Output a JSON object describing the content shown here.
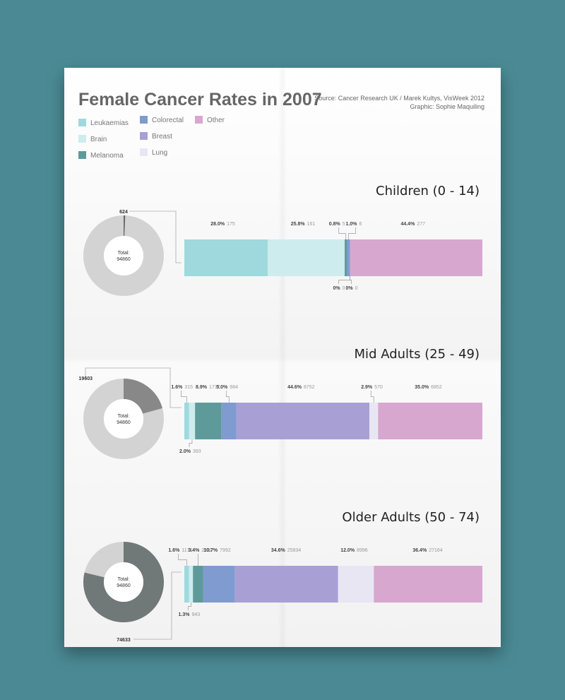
{
  "title": "Female Cancer Rates in 2007",
  "source": "Source: Cancer Research UK / Marek Kultys, VisWeek 2012",
  "graphic": "Graphic: Sophie Maquiling",
  "legend": [
    {
      "name": "Leukaemias",
      "color": "#9fd9dd"
    },
    {
      "name": "Brain",
      "color": "#cdeced"
    },
    {
      "name": "Melanoma",
      "color": "#5e9a9a"
    },
    {
      "name": "Colorectal",
      "color": "#7f9bd0"
    },
    {
      "name": "Breast",
      "color": "#a8a0d4"
    },
    {
      "name": "Lung",
      "color": "#e9e6f3"
    },
    {
      "name": "Other",
      "color": "#d7a7cf"
    }
  ],
  "chart_data": [
    {
      "type": "bar",
      "title": "Children (0 - 14)",
      "total_label": "Total:",
      "total": "94860",
      "group_value": "624",
      "group_fraction": 0.0066,
      "donut_colors": [
        "#666666",
        "#d3d3d3"
      ],
      "segments": [
        {
          "category": "Leukaemias",
          "pct": "28.0%",
          "count": "175",
          "share": 28.0
        },
        {
          "category": "Brain",
          "pct": "25.8%",
          "count": "161",
          "share": 25.8
        },
        {
          "category": "Melanoma",
          "pct": "0.8%",
          "count": "5",
          "share": 0.8
        },
        {
          "category": "Colorectal",
          "pct": "1.0%",
          "count": "6",
          "share": 1.0
        },
        {
          "category": "Breast",
          "pct": "0%",
          "count": "0",
          "share": 0
        },
        {
          "category": "Lung",
          "pct": "0%",
          "count": "0",
          "share": 0
        },
        {
          "category": "Other",
          "pct": "44.4%",
          "count": "277",
          "share": 44.4
        }
      ]
    },
    {
      "type": "bar",
      "title": "Mid Adults (25 - 49)",
      "total_label": "Total:",
      "total": "94860",
      "group_value": "19603",
      "group_fraction": 0.2067,
      "donut_colors": [
        "#888888",
        "#d3d3d3"
      ],
      "segments": [
        {
          "category": "Leukaemias",
          "pct": "1.6%",
          "count": "315",
          "share": 1.6
        },
        {
          "category": "Brain",
          "pct": "2.0%",
          "count": "393",
          "share": 2.0
        },
        {
          "category": "Melanoma",
          "pct": "8.9%",
          "count": "1737",
          "share": 8.9
        },
        {
          "category": "Colorectal",
          "pct": "5.0%",
          "count": "984",
          "share": 5.0
        },
        {
          "category": "Breast",
          "pct": "44.6%",
          "count": "8752",
          "share": 44.6
        },
        {
          "category": "Lung",
          "pct": "2.9%",
          "count": "570",
          "share": 2.9
        },
        {
          "category": "Other",
          "pct": "35.0%",
          "count": "6852",
          "share": 35.0
        }
      ]
    },
    {
      "type": "bar",
      "title": "Older Adults (50 - 74)",
      "total_label": "Total:",
      "total": "94860",
      "group_value": "74633",
      "group_fraction": 0.7868,
      "donut_colors": [
        "#707878",
        "#d3d3d3"
      ],
      "segments": [
        {
          "category": "Leukaemias",
          "pct": "1.6%",
          "count": "1174",
          "share": 1.6
        },
        {
          "category": "Brain",
          "pct": "1.3%",
          "count": "943",
          "share": 1.3
        },
        {
          "category": "Melanoma",
          "pct": "3.4%",
          "count": "2530",
          "share": 3.4
        },
        {
          "category": "Colorectal",
          "pct": "10.7%",
          "count": "7992",
          "share": 10.7
        },
        {
          "category": "Breast",
          "pct": "34.6%",
          "count": "25834",
          "share": 34.6
        },
        {
          "category": "Lung",
          "pct": "12.0%",
          "count": "8996",
          "share": 12.0
        },
        {
          "category": "Other",
          "pct": "36.4%",
          "count": "27164",
          "share": 36.4
        }
      ]
    }
  ]
}
